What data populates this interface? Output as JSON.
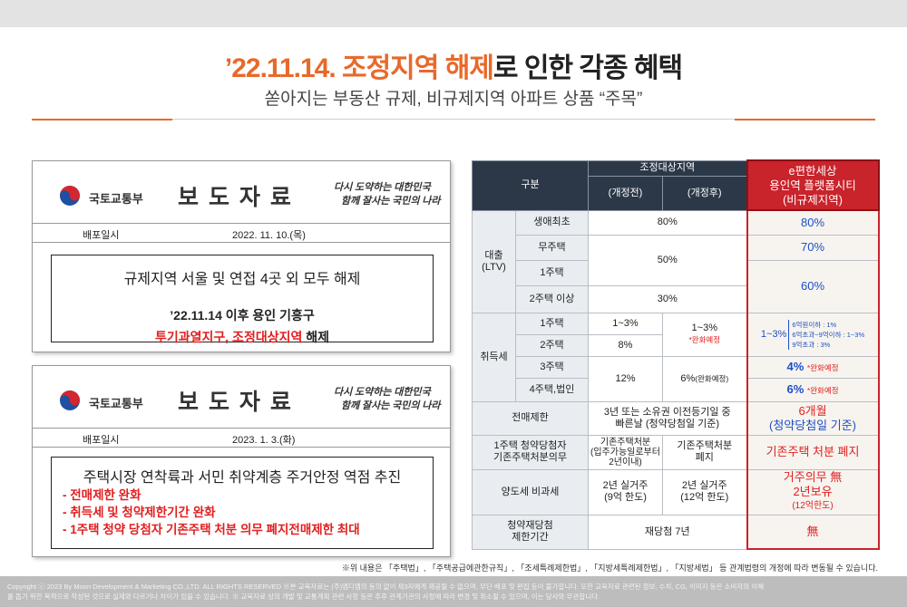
{
  "header": {
    "title_highlight": "’22.11.14. 조정지역 해제",
    "title_rest": "로 인한 각종 혜택",
    "subtitle": "쏟아지는 부동산 규제, 비규제지역 아파트 상품 “주목”"
  },
  "press_releases": [
    {
      "ministry": "국토교통부",
      "heading": "보 도 자 료",
      "slogan": [
        "다시 도약하는 대한민국",
        "함께 잘사는 국민의 나라"
      ],
      "date_label": "배포일시",
      "date": "2022. 11. 10.(목)",
      "headline": "규제지역 서울 및 연접 4곳 외 모두 해제",
      "line": "’22.11.14 이후 용인 기흥구",
      "highlight": "투기과열지구, 조정대상지역",
      "tail": " 해제"
    },
    {
      "ministry": "국토교통부",
      "heading": "보 도 자 료",
      "slogan": [
        "다시 도약하는 대한민국",
        "함께 잘사는 국민의 나라"
      ],
      "date_label": "배포일시",
      "date": "2023. 1. 3.(화)",
      "headline": "주택시장 연착륙과 서민 취약계층 주거안정 역점 추진",
      "bullets": [
        "- 전매제한 완화",
        "- 취득세 및 청약제한기간 완화",
        "- 1주택 청약 당첨자 기존주택 처분 의무 폐지전매제한 최대"
      ]
    }
  ],
  "table": {
    "head": {
      "category": "구분",
      "group": "조정대상지역",
      "before": "(개정전)",
      "after": "(개정후)",
      "site": [
        "e편한세상",
        "용인역 플랫폼시티",
        "(비규제지역)"
      ]
    },
    "loan": {
      "group": [
        "대출",
        "(LTV)"
      ],
      "types": [
        "생애최초",
        "무주택",
        "1주택",
        "2주택 이상"
      ],
      "regulated": [
        "80%",
        "50%",
        "30%"
      ],
      "site": [
        "80%",
        "70%",
        "60%"
      ]
    },
    "acquisition_tax": {
      "group": "취득세",
      "types": [
        "1주택",
        "2주택",
        "3주택",
        "4주택,법인"
      ],
      "before": [
        "1~3%",
        "8%",
        "12%"
      ],
      "after": [
        "1~3%",
        "*완화예정",
        "6%",
        "(완화예정)"
      ],
      "site_rate": "1~3%",
      "site_brackets": [
        "6억원이하 : 1%",
        "6억초과~9억이하 : 1~3%",
        "9억초과 : 3%"
      ],
      "site": [
        "4%",
        "*완화예정",
        "6%",
        "*완화예정"
      ]
    },
    "resale": {
      "label": "전매제한",
      "regulated": [
        "3년 또는 소유권 이전등기일 중",
        "빠른날 (청약당첨일 기준)"
      ],
      "site": [
        "6개월",
        "(청약당첨일 기준)"
      ]
    },
    "disposal": {
      "label": [
        "1주택 청약당첨자",
        "기존주택처분의무"
      ],
      "before": [
        "기존주택처분",
        "(입주가능일로부터",
        "2년이내)"
      ],
      "after": [
        "기존주택처분",
        "폐지"
      ],
      "site": "기존주택 처분 폐지"
    },
    "transfer_tax": {
      "label": "양도세 비과세",
      "before": [
        "2년 실거주",
        "(9억 한도)"
      ],
      "after": [
        "2년 실거주",
        "(12억 한도)"
      ],
      "site": [
        "거주의무 無",
        "2년보유",
        "(12억한도)"
      ]
    },
    "rewin": {
      "label": [
        "청약재당첨",
        "제한기간"
      ],
      "regulated": "재당첨 7년",
      "site": "無"
    }
  },
  "footnote": "※위 내용은 「주택법」, 「주택공급에관한규칙」, 「조세특례제한법」, 「지방세특례제한법」, 「지방세법」 등 관계법령의 개정에 따라 변동될 수 있습니다.",
  "footer": [
    "Copyright ⓒ 2023 By Moon Development & Marketing CO.,LTD. ALL RIGHTS RESERVED  ※본 교육자료는 (주)엠디엠의 동의 없이 제3자에게 제공될 수 없으며, 무단 배포 및 편집 등이 불가합니다. 또한 교육자료 관련된 정보, 수치, CG, 이미지 등은 소비자의 이해",
    "를 돕기 위한 목적으로 작성된 것으로 실제와 다르거나 차이가 있을 수 있습니다. ※ 교육자료 상의 개발 및 교통계획 관련 사항 등은 추후 관계기관의 사정에 따라 변경 및 취소될 수 있으며, 이는 당사와 무관합니다."
  ]
}
